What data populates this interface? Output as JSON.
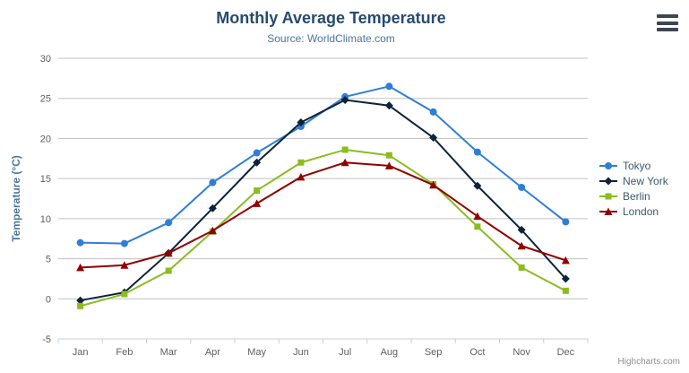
{
  "chart_data": {
    "type": "line",
    "title": "Monthly Average Temperature",
    "subtitle": "Source: WorldClimate.com",
    "categories": [
      "Jan",
      "Feb",
      "Mar",
      "Apr",
      "May",
      "Jun",
      "Jul",
      "Aug",
      "Sep",
      "Oct",
      "Nov",
      "Dec"
    ],
    "xlabel": "",
    "ylabel": "Temperature (°C)",
    "ylim": [
      -5,
      30
    ],
    "ytick_step": 5,
    "grid": true,
    "legend_position": "right-middle",
    "series": [
      {
        "name": "Tokyo",
        "color": "#2f7ed8",
        "marker": "circle",
        "values": [
          7.0,
          6.9,
          9.5,
          14.5,
          18.2,
          21.5,
          25.2,
          26.5,
          23.3,
          18.3,
          13.9,
          9.6
        ]
      },
      {
        "name": "New York",
        "color": "#0d233a",
        "marker": "diamond",
        "values": [
          -0.2,
          0.8,
          5.7,
          11.3,
          17.0,
          22.0,
          24.8,
          24.1,
          20.1,
          14.1,
          8.6,
          2.5
        ]
      },
      {
        "name": "Berlin",
        "color": "#8bbc21",
        "marker": "square",
        "values": [
          -0.9,
          0.6,
          3.5,
          8.4,
          13.5,
          17.0,
          18.6,
          17.9,
          14.3,
          9.0,
          3.9,
          1.0
        ]
      },
      {
        "name": "London",
        "color": "#910000",
        "marker": "triangle",
        "values": [
          3.9,
          4.2,
          5.7,
          8.5,
          11.9,
          15.2,
          17.0,
          16.6,
          14.2,
          10.3,
          6.6,
          4.8
        ]
      }
    ]
  },
  "chrome": {
    "credits": "Highcharts.com",
    "menu_icon": "hamburger-icon"
  },
  "colors": {
    "title": "#274b6d",
    "subtitle": "#4d759e",
    "axis_label": "#606060",
    "axis_title": "#4d759e",
    "gridline": "#c0c0c0",
    "axis_line": "#c0d0e0",
    "legend_text": "#3e576f",
    "credits_text": "#909090"
  }
}
